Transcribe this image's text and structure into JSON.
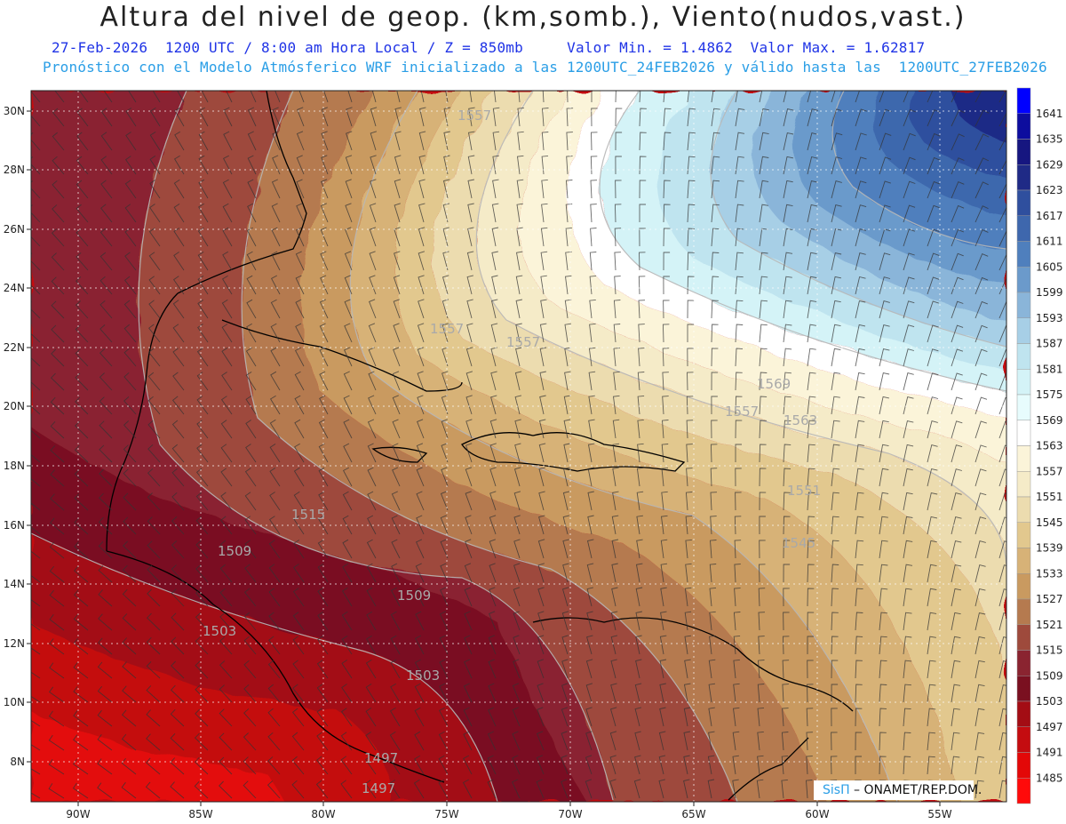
{
  "header": {
    "title": "Altura del nivel de geop. (km,somb.), Viento(nudos,vast.)",
    "line1": "27-Feb-2026  1200 UTC / 8:00 am Hora Local / Z = 850mb     Valor Min. = 1.4862  Valor Max. = 1.62817",
    "line2": "Pronóstico con el Modelo Atmósferico WRF inicializado a las 1200UTC_24FEB2026 y válido hasta las  1200UTC_27FEB2026"
  },
  "credit": {
    "brand": "SisΠ",
    "org": " – ONAMET/REP.DOM."
  },
  "axes": {
    "lat_labels": [
      "30N",
      "28N",
      "26N",
      "24N",
      "22N",
      "20N",
      "18N",
      "16N",
      "14N",
      "12N",
      "10N",
      "8N"
    ],
    "lon_labels": [
      "90W",
      "85W",
      "80W",
      "75W",
      "70W",
      "65W",
      "60W",
      "55W"
    ]
  },
  "colorbar": {
    "levels": [
      "1641",
      "1635",
      "1629",
      "1623",
      "1617",
      "1611",
      "1605",
      "1599",
      "1593",
      "1587",
      "1581",
      "1575",
      "1569",
      "1563",
      "1557",
      "1551",
      "1545",
      "1539",
      "1533",
      "1527",
      "1521",
      "1515",
      "1509",
      "1503",
      "1497",
      "1491",
      "1485"
    ],
    "colors": [
      "#0000ff",
      "#0d0d9e",
      "#161680",
      "#1f2a86",
      "#2f4f9e",
      "#3e67ad",
      "#4f7fbd",
      "#6b9acb",
      "#8ab5d9",
      "#a7cfe6",
      "#bfe4ef",
      "#d4f3f7",
      "#e7fcfd",
      "#ffffff",
      "#fbf4d9",
      "#f5ebc8",
      "#ecdcaf",
      "#e2c88e",
      "#d7b277",
      "#c99a60",
      "#b57a4f",
      "#9e4a3c",
      "#8a2430",
      "#7a1020",
      "#a30d14",
      "#c40c10",
      "#e30808",
      "#ff0a0a"
    ]
  },
  "contour_labels": [
    "1557",
    "1557",
    "1557",
    "1569",
    "1563",
    "1557",
    "1551",
    "1545",
    "1515",
    "1509",
    "1509",
    "1503",
    "1503",
    "1497",
    "1497"
  ]
}
